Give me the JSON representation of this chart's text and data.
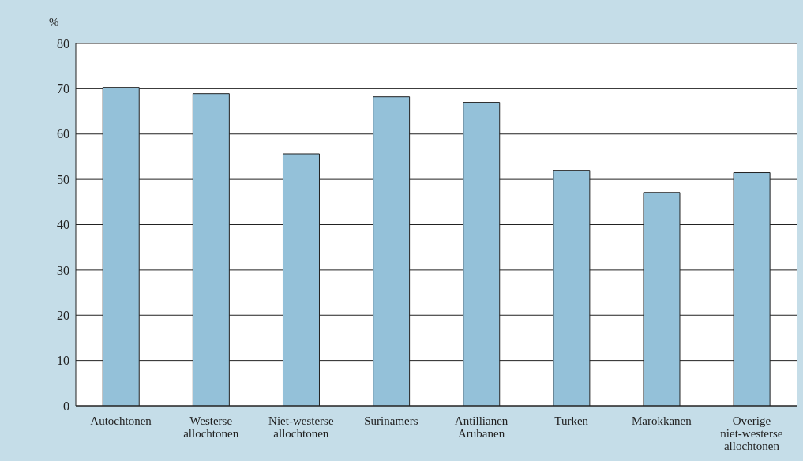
{
  "chart_data": {
    "type": "bar",
    "ylabel": "%",
    "categories": [
      "Autochtonen",
      "Westerse allochtonen",
      "Niet-westerse allochtonen",
      "Surinamers",
      "Antillianen Arubanen",
      "Turken",
      "Marokkanen",
      "Overige niet-westerse allochtonen"
    ],
    "values": [
      70.3,
      68.9,
      55.6,
      68.2,
      67.0,
      52.0,
      47.1,
      51.5
    ],
    "color": "#94c1d9",
    "ylim": [
      0,
      80
    ],
    "yticks": [
      0,
      10,
      20,
      30,
      40,
      50,
      60,
      70,
      80
    ],
    "grid": "y"
  }
}
